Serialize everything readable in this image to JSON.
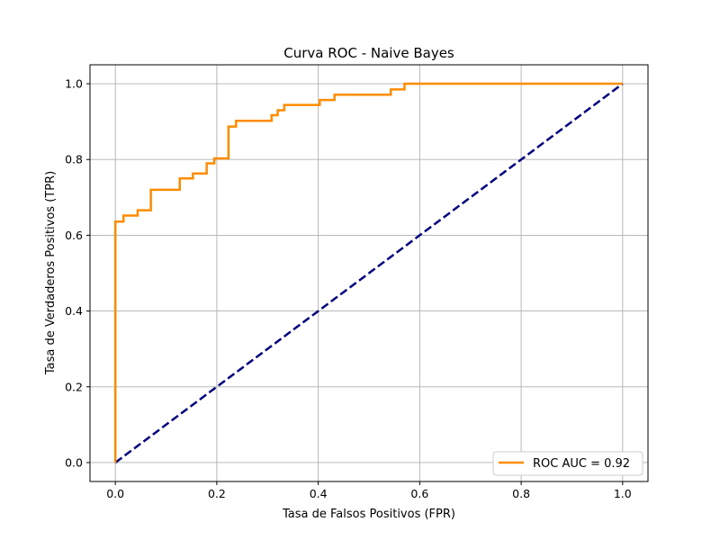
{
  "chart_data": {
    "type": "line",
    "title": "Curva ROC - Naive Bayes",
    "xlabel": "Tasa de Falsos Positivos (FPR)",
    "ylabel": "Tasa de Verdaderos Positivos (TPR)",
    "xlim": [
      -0.05,
      1.05
    ],
    "ylim": [
      -0.05,
      1.05
    ],
    "xticks": [
      0.0,
      0.2,
      0.4,
      0.6,
      0.8,
      1.0
    ],
    "yticks": [
      0.0,
      0.2,
      0.4,
      0.6,
      0.8,
      1.0
    ],
    "xtick_labels": [
      "0.0",
      "0.2",
      "0.4",
      "0.6",
      "0.8",
      "1.0"
    ],
    "ytick_labels": [
      "0.0",
      "0.2",
      "0.4",
      "0.6",
      "0.8",
      "1.0"
    ],
    "grid": true,
    "legend_position": "lower-right",
    "series": [
      {
        "name": "ROC AUC = 0.92",
        "color": "#ff8c00",
        "style": "solid",
        "x": [
          0.0,
          0.0,
          0.0,
          0.016,
          0.016,
          0.044,
          0.044,
          0.07,
          0.07,
          0.127,
          0.127,
          0.153,
          0.153,
          0.18,
          0.18,
          0.195,
          0.195,
          0.223,
          0.223,
          0.238,
          0.238,
          0.308,
          0.308,
          0.32,
          0.32,
          0.333,
          0.333,
          0.403,
          0.403,
          0.432,
          0.432,
          0.543,
          0.543,
          0.57,
          0.57,
          1.0
        ],
        "y": [
          0.0,
          0.0,
          0.636,
          0.636,
          0.652,
          0.652,
          0.666,
          0.666,
          0.72,
          0.72,
          0.75,
          0.75,
          0.763,
          0.763,
          0.79,
          0.79,
          0.803,
          0.803,
          0.887,
          0.887,
          0.902,
          0.902,
          0.917,
          0.917,
          0.93,
          0.93,
          0.944,
          0.944,
          0.957,
          0.957,
          0.971,
          0.971,
          0.985,
          0.985,
          1.0,
          1.0
        ]
      },
      {
        "name": "",
        "color": "#000080",
        "style": "dashed",
        "x": [
          0.0,
          1.0
        ],
        "y": [
          0.0,
          1.0
        ]
      }
    ]
  }
}
